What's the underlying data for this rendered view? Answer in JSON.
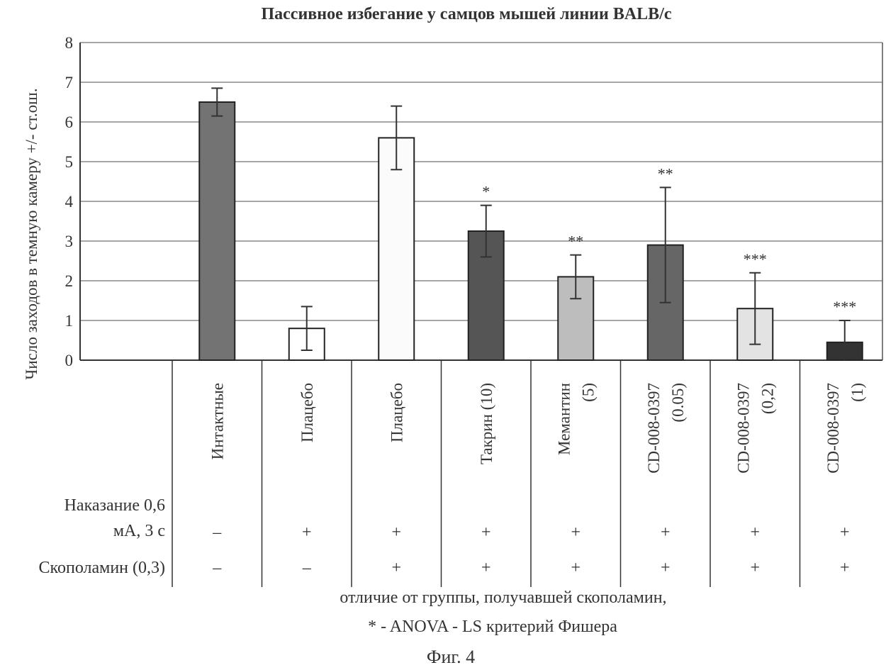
{
  "chart_data": {
    "type": "bar",
    "title": "Пассивное избегание у самцов мышей линии BALB/c",
    "ylabel": "Число заходов в темную камеру +/- ст.ош.",
    "ylim": [
      0,
      8
    ],
    "yticks": [
      "0",
      "1",
      "2",
      "3",
      "4",
      "5",
      "6",
      "7",
      "8"
    ],
    "grid": true,
    "categories": [
      [
        "Интактные"
      ],
      [
        "Плацебо"
      ],
      [
        "Плацебо"
      ],
      [
        "Такрин (10)"
      ],
      [
        "Мемантин",
        "(5)"
      ],
      [
        "CD-008-0397",
        "(0.05)"
      ],
      [
        "CD-008-0397",
        "(0,2)"
      ],
      [
        "CD-008-0397",
        "(1)"
      ]
    ],
    "values": [
      6.5,
      0.8,
      5.6,
      3.25,
      2.1,
      2.9,
      1.3,
      0.45
    ],
    "errors": [
      0.35,
      0.55,
      0.8,
      0.65,
      0.55,
      1.45,
      0.9,
      0.55
    ],
    "bar_colors": [
      "#737373",
      "#ffffff",
      "#fbfbfb",
      "#555555",
      "#bdbdbd",
      "#666666",
      "#e3e3e3",
      "#333333"
    ],
    "significance": [
      "",
      "",
      "",
      "*",
      "**",
      "**",
      "***",
      "***"
    ],
    "table_rows": [
      {
        "label": [
          "Наказание 0,6",
          "мА, 3 с"
        ],
        "values": [
          "–",
          "+",
          "+",
          "+",
          "+",
          "+",
          "+",
          "+"
        ]
      },
      {
        "label": [
          "Скополамин (0,3)"
        ],
        "values": [
          "–",
          "–",
          "+",
          "+",
          "+",
          "+",
          "+",
          "+"
        ]
      }
    ],
    "note_lines": [
      "отличие от группы, получавшей скополамин,",
      "* - ANOVA - LS критерий Фишера"
    ],
    "figure_label": "Фиг. 4"
  }
}
